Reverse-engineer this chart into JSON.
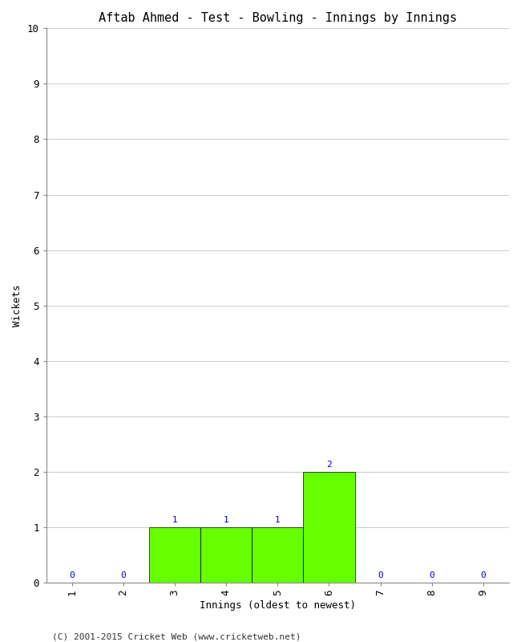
{
  "title": "Aftab Ahmed - Test - Bowling - Innings by Innings",
  "xlabel": "Innings (oldest to newest)",
  "ylabel": "Wickets",
  "x_values": [
    1,
    2,
    3,
    4,
    5,
    6,
    7,
    8,
    9
  ],
  "y_values": [
    0,
    0,
    1,
    1,
    1,
    2,
    0,
    0,
    0
  ],
  "bar_color": "#66ff00",
  "bar_edge_color": "#000000",
  "label_color": "#0000cc",
  "ylim": [
    0,
    10
  ],
  "xlim": [
    0.5,
    9.5
  ],
  "yticks": [
    0,
    1,
    2,
    3,
    4,
    5,
    6,
    7,
    8,
    9,
    10
  ],
  "xticks": [
    1,
    2,
    3,
    4,
    5,
    6,
    7,
    8,
    9
  ],
  "background_color": "#ffffff",
  "footer": "(C) 2001-2015 Cricket Web (www.cricketweb.net)",
  "title_fontsize": 11,
  "axis_label_fontsize": 9,
  "tick_fontsize": 9,
  "annotation_fontsize": 8,
  "footer_fontsize": 8,
  "bar_width": 1.0
}
